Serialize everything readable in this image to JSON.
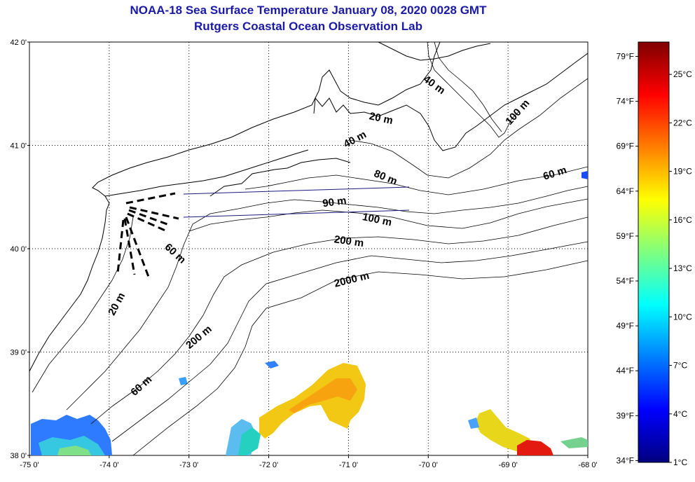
{
  "title_line1": "NOAA-18 Sea Surface Temperature January 08, 2020 0028 GMT",
  "title_line2": "Rutgers Coastal Ocean Observation Lab",
  "lat_labels": [
    "42 0'",
    "41 0'",
    "40 0'",
    "39 0'",
    "38 0'"
  ],
  "lat_values": [
    42,
    41,
    40,
    39,
    38
  ],
  "lon_labels": [
    "-75 0'",
    "-74 0'",
    "-73 0'",
    "-72 0'",
    "-71 0'",
    "-70 0'",
    "-69 0'",
    "-68 0'"
  ],
  "lon_values": [
    -75,
    -74,
    -73,
    -72,
    -71,
    -70,
    -69,
    -68
  ],
  "lat_range": [
    38,
    42
  ],
  "lon_range": [
    -75,
    -68
  ],
  "depth_labels": [
    {
      "text": "20 m",
      "lon": -73.87,
      "lat": 39.45,
      "angle": -62
    },
    {
      "text": "60 m",
      "lon": -73.57,
      "lat": 38.65,
      "angle": -42
    },
    {
      "text": "200 m",
      "lon": -72.85,
      "lat": 39.12,
      "angle": -40
    },
    {
      "text": "60 m",
      "lon": -73.2,
      "lat": 39.93,
      "angle": 42
    },
    {
      "text": "2000 m",
      "lon": -70.95,
      "lat": 39.67,
      "angle": -14
    },
    {
      "text": "200 m",
      "lon": -71.0,
      "lat": 40.04,
      "angle": 8
    },
    {
      "text": "100 m",
      "lon": -70.65,
      "lat": 40.25,
      "angle": 12
    },
    {
      "text": "90 m",
      "lon": -71.17,
      "lat": 40.42,
      "angle": -8
    },
    {
      "text": "80 m",
      "lon": -70.55,
      "lat": 40.66,
      "angle": 22
    },
    {
      "text": "40 m",
      "lon": -70.9,
      "lat": 41.03,
      "angle": -28
    },
    {
      "text": "20 m",
      "lon": -70.6,
      "lat": 41.23,
      "angle": 12
    },
    {
      "text": "40 m",
      "lon": -69.95,
      "lat": 41.56,
      "angle": 36
    },
    {
      "text": "100 m",
      "lon": -68.85,
      "lat": 41.3,
      "angle": -48
    },
    {
      "text": "60 m",
      "lon": -68.4,
      "lat": 40.7,
      "angle": -18
    }
  ],
  "colorbar": {
    "fahrenheit_labels": [
      "79°F",
      "74°F",
      "69°F",
      "64°F",
      "59°F",
      "54°F",
      "49°F",
      "44°F",
      "39°F",
      "34°F"
    ],
    "fahrenheit_values": [
      79,
      74,
      69,
      64,
      59,
      54,
      49,
      44,
      39,
      34
    ],
    "celsius_labels": [
      "25°C",
      "22°C",
      "19°C",
      "16°C",
      "13°C",
      "10°C",
      "7°C",
      "4°C",
      "1°C"
    ],
    "celsius_values": [
      25,
      22,
      19,
      16,
      13,
      10,
      7,
      4,
      1
    ],
    "min_c": 1,
    "max_c": 27,
    "colors": [
      "#00007f",
      "#0000ff",
      "#007fff",
      "#00ffff",
      "#7fff7f",
      "#ffff00",
      "#ff7f00",
      "#ff0000",
      "#7f0000"
    ]
  },
  "colors": {
    "title": "#1a1aa6",
    "coastline": "#000000",
    "transect": "#1a1a80"
  }
}
